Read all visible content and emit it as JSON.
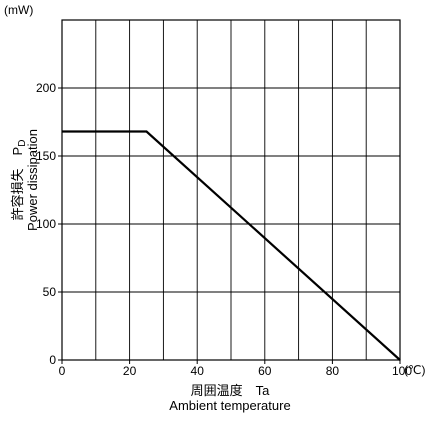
{
  "chart_data": {
    "type": "line",
    "title": "",
    "y_unit": "(mW)",
    "x_unit": "(℃)",
    "xlabel_jp": "周囲温度　Ta",
    "xlabel_en": "Ambient temperature",
    "ylabel_jp": "許容損失　P",
    "ylabel_sub": "D",
    "ylabel_en": "Power dissipation",
    "xlim": [
      0,
      100
    ],
    "ylim": [
      0,
      250
    ],
    "xticks": [
      "0",
      "20",
      "40",
      "60",
      "80",
      "100"
    ],
    "yticks": [
      "0",
      "50",
      "100",
      "150",
      "200"
    ],
    "grid": true,
    "series": [
      {
        "points": [
          [
            0,
            168
          ],
          [
            25,
            168
          ],
          [
            100,
            0
          ]
        ]
      }
    ]
  }
}
